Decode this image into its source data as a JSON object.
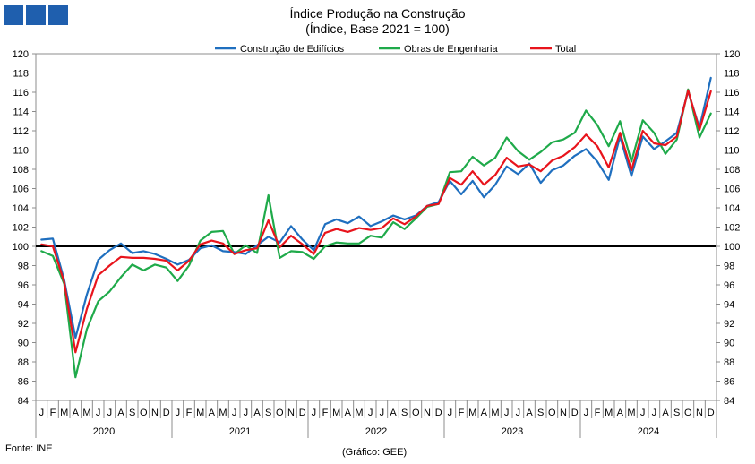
{
  "header": {
    "title_line1": "Índice Produção na Construção",
    "title_line2": "(Índice, Base 2021 = 100)"
  },
  "footer": {
    "source": "Fonte: INE",
    "credit": "(Gráfico: GEE)"
  },
  "colors": {
    "buildings": "#1f6fbf",
    "engineering": "#1faa4a",
    "total": "#e8141c",
    "reference": "#000000",
    "logo": "#1f5fae"
  },
  "chart_data": {
    "type": "line",
    "title": "Índice Produção na Construção",
    "subtitle": "(Índice, Base 2021 = 100)",
    "ylim": [
      84,
      120
    ],
    "ytick_step": 2,
    "yticks": [
      "84",
      "86",
      "88",
      "90",
      "92",
      "94",
      "96",
      "98",
      "100",
      "102",
      "104",
      "106",
      "108",
      "110",
      "112",
      "114",
      "116",
      "118",
      "120"
    ],
    "reference_line": 100,
    "month_labels": [
      "J",
      "F",
      "M",
      "A",
      "M",
      "J",
      "J",
      "A",
      "S",
      "O",
      "N",
      "D"
    ],
    "years": [
      "2020",
      "2021",
      "2022",
      "2023",
      "2024"
    ],
    "series": [
      {
        "name": "Construção de Edifícios",
        "color": "#1f6fbf",
        "values": [
          100.7,
          100.8,
          96.5,
          90.5,
          95,
          98.6,
          99.6,
          100.3,
          99.3,
          99.5,
          99.2,
          98.7,
          98.1,
          98.6,
          99.8,
          100.1,
          99.5,
          99.4,
          99.2,
          100.1,
          101,
          100.4,
          102.1,
          100.7,
          99.6,
          102.3,
          102.8,
          102.4,
          103.1,
          102.1,
          102.6,
          103.2,
          102.8,
          103.2,
          104.2,
          104.6,
          106.8,
          105.4,
          106.8,
          105.1,
          106.4,
          108.3,
          107.5,
          108.6,
          106.6,
          107.9,
          108.4,
          109.4,
          110.1,
          108.8,
          106.9,
          111.4,
          107.3,
          111.4,
          110.1,
          110.9,
          111.8,
          116.1,
          112.3,
          117.5
        ]
      },
      {
        "name": "Obras de Engenharia",
        "color": "#1faa4a",
        "values": [
          99.5,
          99.0,
          96.1,
          86.4,
          91.4,
          94.3,
          95.3,
          96.8,
          98.1,
          97.5,
          98.1,
          97.8,
          96.4,
          98,
          100.6,
          101.5,
          101.6,
          99.2,
          100.1,
          99.3,
          105.3,
          98.8,
          99.5,
          99.4,
          98.7,
          100,
          100.4,
          100.3,
          100.3,
          101.1,
          100.9,
          102.5,
          101.8,
          102.9,
          104.1,
          104.4,
          107.7,
          107.8,
          109.3,
          108.4,
          109.2,
          111.3,
          109.9,
          109,
          109.8,
          110.8,
          111.1,
          111.8,
          114.1,
          112.6,
          110.4,
          113,
          108.8,
          113.1,
          111.8,
          109.6,
          111.1,
          116.3,
          111.3,
          113.8
        ]
      },
      {
        "name": "Total",
        "color": "#e8141c",
        "values": [
          100.2,
          100.0,
          96.3,
          89,
          93.5,
          97,
          98,
          98.9,
          98.8,
          98.8,
          98.7,
          98.5,
          97.5,
          98.5,
          100.2,
          100.6,
          100.3,
          99.2,
          99.6,
          99.8,
          102.7,
          99.9,
          101.1,
          100.2,
          99.2,
          101.4,
          101.8,
          101.5,
          101.9,
          101.7,
          101.9,
          102.9,
          102.3,
          103.1,
          104.2,
          104.4,
          107.1,
          106.4,
          107.8,
          106.4,
          107.4,
          109.2,
          108.3,
          108.5,
          107.8,
          108.9,
          109.4,
          110.3,
          111.6,
          110.4,
          108.2,
          111.8,
          107.9,
          112,
          110.7,
          110.5,
          111.4,
          116.2,
          112.1,
          116.1
        ]
      }
    ]
  }
}
